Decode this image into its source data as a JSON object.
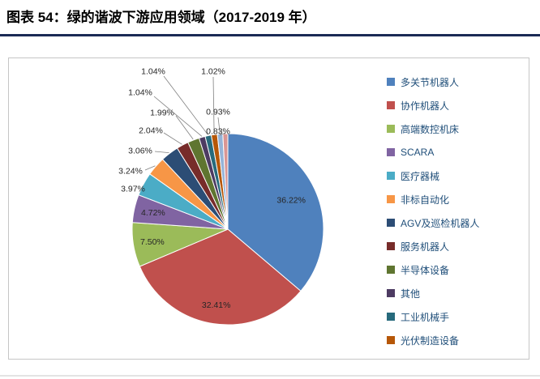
{
  "figure": {
    "title": "图表 54：绿的谐波下游应用领域（2017-2019 年）"
  },
  "chart_data": {
    "type": "pie",
    "title": "图表 54：绿的谐波下游应用领域（2017-2019 年）",
    "legend_position": "right",
    "slices": [
      {
        "label": "多关节机器人",
        "value": 36.22,
        "pct_label": "36.22%",
        "color": "#4F81BD",
        "in_legend": true
      },
      {
        "label": "协作机器人",
        "value": 32.41,
        "pct_label": "32.41%",
        "color": "#C0504D",
        "in_legend": true
      },
      {
        "label": "高端数控机床",
        "value": 7.5,
        "pct_label": "7.50%",
        "color": "#9BBB59",
        "in_legend": true
      },
      {
        "label": "SCARA",
        "value": 4.72,
        "pct_label": "4.72%",
        "color": "#8064A2",
        "in_legend": true
      },
      {
        "label": "医疗器械",
        "value": 3.97,
        "pct_label": "3.97%",
        "color": "#4BACC6",
        "in_legend": true
      },
      {
        "label": "非标自动化",
        "value": 3.24,
        "pct_label": "3.24%",
        "color": "#F79646",
        "in_legend": true
      },
      {
        "label": "AGV及巡检机器人",
        "value": 3.06,
        "pct_label": "3.06%",
        "color": "#2C4D75",
        "in_legend": true
      },
      {
        "label": "服务机器人",
        "value": 2.04,
        "pct_label": "2.04%",
        "color": "#772C2A",
        "in_legend": true
      },
      {
        "label": "半导体设备",
        "value": 1.99,
        "pct_label": "1.99%",
        "color": "#5F7530",
        "in_legend": true
      },
      {
        "label": "其他",
        "value": 1.04,
        "pct_label": "1.04%",
        "color": "#4D3B62",
        "in_legend": true
      },
      {
        "label": "工业机械手",
        "value": 1.04,
        "pct_label": "1.04%",
        "color": "#276A7C",
        "in_legend": true
      },
      {
        "label": "光伏制造设备",
        "value": 1.02,
        "pct_label": "1.02%",
        "color": "#B65708",
        "in_legend": true
      },
      {
        "label": "",
        "value": 0.93,
        "pct_label": "0.93%",
        "color": "#95B3D7",
        "in_legend": false
      },
      {
        "label": "",
        "value": 0.83,
        "pct_label": "0.83%",
        "color": "#D99694",
        "in_legend": false
      }
    ]
  }
}
